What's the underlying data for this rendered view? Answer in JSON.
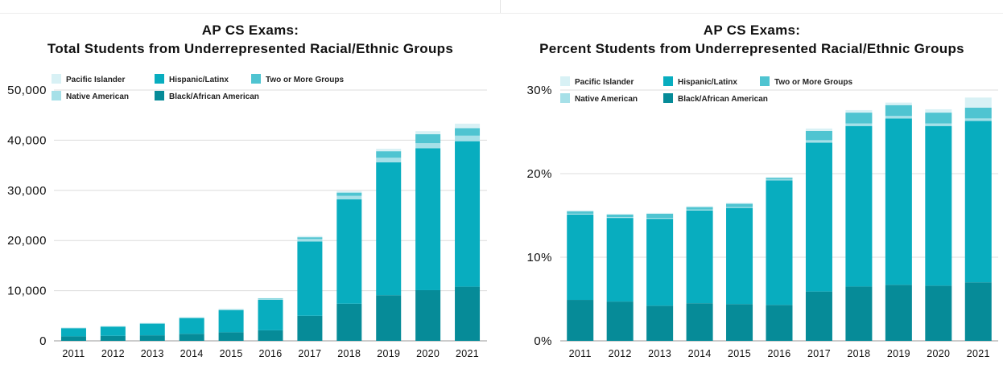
{
  "colors": {
    "pacific_islander": "#d8f1f5",
    "native_american": "#a6e0e8",
    "two_or_more": "#4fc4d1",
    "hispanic_latinx": "#08adbf",
    "black_african_american": "#068b98",
    "grid": "#dcdcdc"
  },
  "legend": [
    {
      "key": "pacific_islander",
      "label": "Pacific Islander"
    },
    {
      "key": "hispanic_latinx",
      "label": "Hispanic/Latinx"
    },
    {
      "key": "two_or_more",
      "label": "Two or More Groups"
    },
    {
      "key": "native_american",
      "label": "Native American"
    },
    {
      "key": "black_african_american",
      "label": "Black/African American"
    }
  ],
  "chart_data": [
    {
      "type": "bar",
      "stacked": true,
      "title_line1": "AP CS Exams:",
      "title_line2": "Total Students from Underrepresented Racial/Ethnic Groups",
      "categories": [
        "2011",
        "2012",
        "2013",
        "2014",
        "2015",
        "2016",
        "2017",
        "2018",
        "2019",
        "2020",
        "2021"
      ],
      "ylim": [
        0,
        50000
      ],
      "yticks": [
        0,
        10000,
        20000,
        30000,
        40000,
        50000
      ],
      "ytick_labels": [
        "0",
        "10,000",
        "20,000",
        "30,000",
        "40,000",
        "50,000"
      ],
      "legend_position": "top-left",
      "grid": true,
      "series": [
        {
          "name": "Black/African American",
          "key": "black_african_american",
          "values": [
            900,
            1000,
            1100,
            1400,
            1700,
            2100,
            5000,
            7400,
            9100,
            10100,
            10800
          ]
        },
        {
          "name": "Hispanic/Latinx",
          "key": "hispanic_latinx",
          "values": [
            1600,
            1800,
            2300,
            3100,
            4400,
            6100,
            14800,
            20800,
            26500,
            28300,
            29000
          ]
        },
        {
          "name": "Native American",
          "key": "native_american",
          "values": [
            50,
            50,
            60,
            80,
            100,
            150,
            500,
            700,
            900,
            1000,
            1100
          ]
        },
        {
          "name": "Two or More Groups",
          "key": "two_or_more",
          "values": [
            50,
            60,
            80,
            100,
            100,
            120,
            350,
            650,
            1300,
            1800,
            1500
          ]
        },
        {
          "name": "Pacific Islander",
          "key": "pacific_islander",
          "values": [
            20,
            20,
            30,
            40,
            40,
            50,
            250,
            300,
            500,
            600,
            900
          ]
        }
      ]
    },
    {
      "type": "bar",
      "stacked": true,
      "title_line1": "AP CS Exams:",
      "title_line2": "Percent Students from Underrepresented Racial/Ethnic Groups",
      "categories": [
        "2011",
        "2012",
        "2013",
        "2014",
        "2015",
        "2016",
        "2017",
        "2018",
        "2019",
        "2020",
        "2021"
      ],
      "ylim": [
        0,
        30
      ],
      "yticks": [
        0,
        10,
        20,
        30
      ],
      "ytick_labels": [
        "0%",
        "10%",
        "20%",
        "30%"
      ],
      "legend_position": "top-left",
      "grid": true,
      "series": [
        {
          "name": "Black/African American",
          "key": "black_african_american",
          "values": [
            4.9,
            4.7,
            4.2,
            4.5,
            4.4,
            4.3,
            5.9,
            6.5,
            6.7,
            6.6,
            7.0
          ]
        },
        {
          "name": "Hispanic/Latinx",
          "key": "hispanic_latinx",
          "values": [
            10.2,
            10.0,
            10.4,
            11.1,
            11.5,
            14.9,
            17.8,
            19.2,
            19.9,
            19.1,
            19.3
          ]
        },
        {
          "name": "Native American",
          "key": "native_american",
          "values": [
            0.1,
            0.1,
            0.1,
            0.1,
            0.1,
            0.1,
            0.3,
            0.3,
            0.3,
            0.3,
            0.3
          ]
        },
        {
          "name": "Two or More Groups",
          "key": "two_or_more",
          "values": [
            0.3,
            0.3,
            0.5,
            0.3,
            0.4,
            0.2,
            1.1,
            1.3,
            1.3,
            1.3,
            1.3
          ]
        },
        {
          "name": "Pacific Islander",
          "key": "pacific_islander",
          "values": [
            0.1,
            0.1,
            0.1,
            0.1,
            0.1,
            0.1,
            0.3,
            0.3,
            0.3,
            0.4,
            1.2
          ]
        }
      ]
    }
  ]
}
